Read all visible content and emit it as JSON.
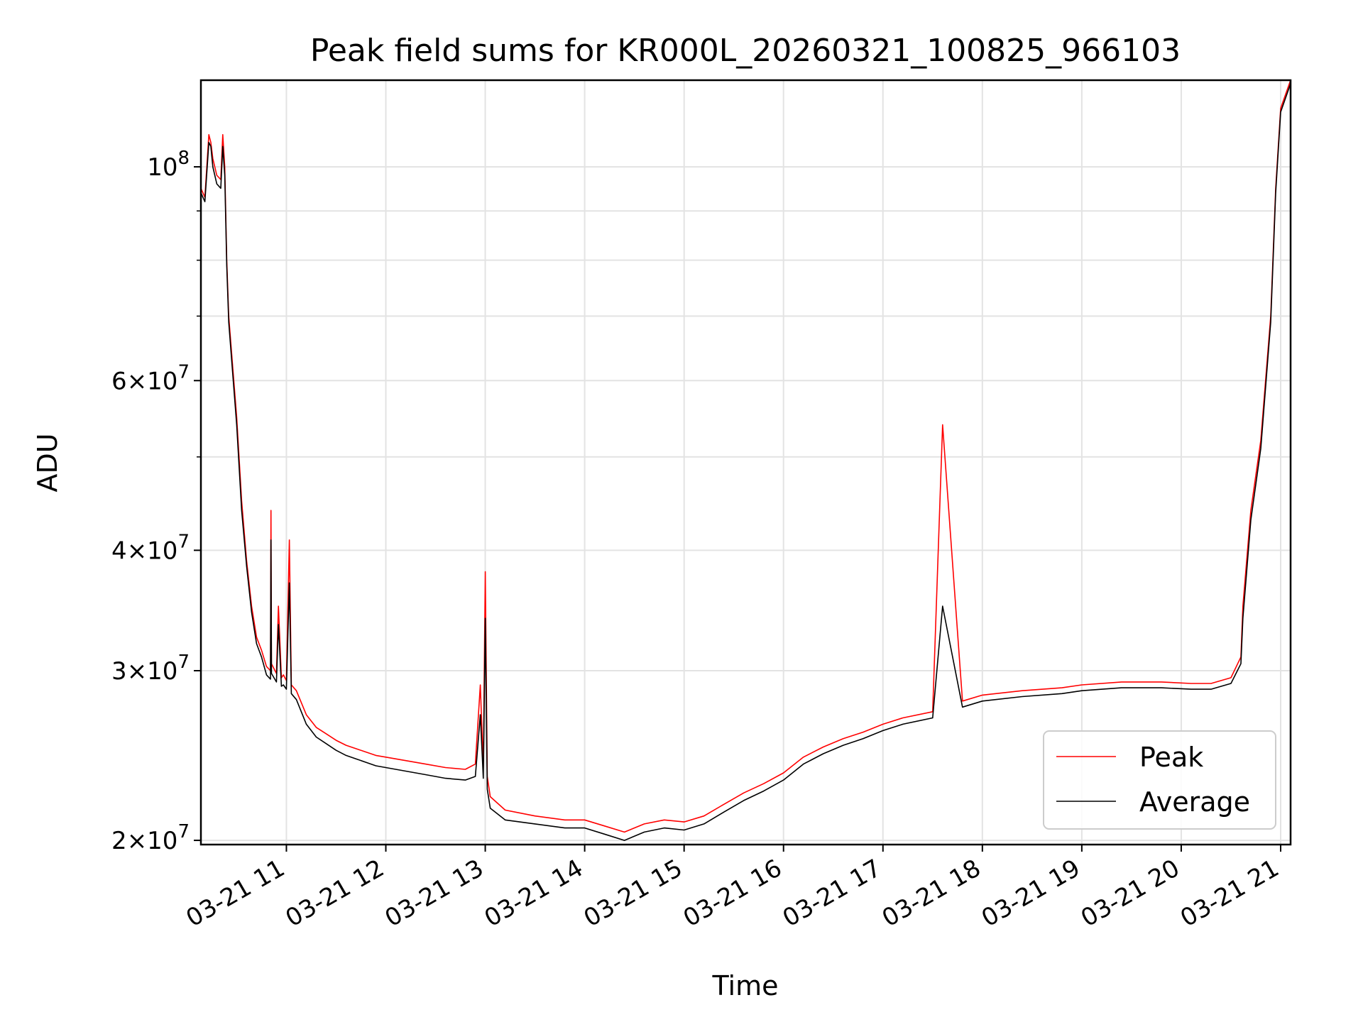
{
  "chart_data": {
    "type": "line",
    "title": "Peak field sums for KR000L_20260321_100825_966103",
    "xlabel": "Time",
    "ylabel": "ADU",
    "yscale": "log",
    "ylim": [
      19800000,
      123000000
    ],
    "xlim": [
      10.14,
      21.1
    ],
    "grid": true,
    "legend_position": "lower-right",
    "x_ticks": [
      {
        "value": 11,
        "label": "03-21 11"
      },
      {
        "value": 12,
        "label": "03-21 12"
      },
      {
        "value": 13,
        "label": "03-21 13"
      },
      {
        "value": 14,
        "label": "03-21 14"
      },
      {
        "value": 15,
        "label": "03-21 15"
      },
      {
        "value": 16,
        "label": "03-21 16"
      },
      {
        "value": 17,
        "label": "03-21 17"
      },
      {
        "value": 18,
        "label": "03-21 18"
      },
      {
        "value": 19,
        "label": "03-21 19"
      },
      {
        "value": 20,
        "label": "03-21 20"
      },
      {
        "value": 21,
        "label": "03-21 21"
      }
    ],
    "y_ticks": [
      {
        "value": 20000000,
        "mant": "2",
        "exp": "7"
      },
      {
        "value": 30000000,
        "mant": "3",
        "exp": "7"
      },
      {
        "value": 40000000,
        "mant": "4",
        "exp": "7"
      },
      {
        "value": 60000000,
        "mant": "6",
        "exp": "7"
      },
      {
        "value": 100000000,
        "mant": "",
        "exp": "8"
      }
    ],
    "y_minor_ticks": [
      50000000,
      70000000,
      80000000,
      90000000
    ],
    "series": [
      {
        "name": "Peak",
        "color": "#ff0000",
        "x": [
          10.14,
          10.18,
          10.22,
          10.24,
          10.26,
          10.3,
          10.34,
          10.36,
          10.38,
          10.4,
          10.42,
          10.46,
          10.5,
          10.55,
          10.6,
          10.65,
          10.7,
          10.75,
          10.8,
          10.84,
          10.845,
          10.85,
          10.9,
          10.92,
          10.95,
          10.97,
          11.0,
          11.03,
          11.05,
          11.1,
          11.2,
          11.3,
          11.4,
          11.5,
          11.6,
          11.7,
          11.8,
          11.9,
          12.0,
          12.2,
          12.4,
          12.6,
          12.8,
          12.9,
          12.95,
          12.98,
          13.0,
          13.02,
          13.05,
          13.2,
          13.5,
          13.8,
          14.0,
          14.2,
          14.4,
          14.6,
          14.8,
          15.0,
          15.2,
          15.4,
          15.6,
          15.8,
          16.0,
          16.2,
          16.4,
          16.6,
          16.8,
          17.0,
          17.2,
          17.5,
          17.6,
          17.8,
          18.0,
          18.4,
          18.8,
          19.0,
          19.4,
          19.8,
          20.1,
          20.3,
          20.5,
          20.6,
          20.62,
          20.7,
          20.8,
          20.9,
          20.95,
          21.0,
          21.1
        ],
        "values": [
          95000000,
          93000000,
          108000000,
          106000000,
          102000000,
          98000000,
          97000000,
          108000000,
          100000000,
          80000000,
          70000000,
          62000000,
          55000000,
          45000000,
          39000000,
          35000000,
          32500000,
          31500000,
          30300000,
          30000000,
          44000000,
          30500000,
          29800000,
          35000000,
          29500000,
          29700000,
          29300000,
          41000000,
          29000000,
          28600000,
          27000000,
          26200000,
          25800000,
          25400000,
          25100000,
          24900000,
          24700000,
          24500000,
          24400000,
          24200000,
          24000000,
          23800000,
          23700000,
          24000000,
          29000000,
          23800000,
          38000000,
          23300000,
          22200000,
          21500000,
          21200000,
          21000000,
          21000000,
          20700000,
          20400000,
          20800000,
          21000000,
          20900000,
          21200000,
          21800000,
          22400000,
          22900000,
          23500000,
          24400000,
          25000000,
          25500000,
          25900000,
          26400000,
          26800000,
          27200000,
          54000000,
          27900000,
          28300000,
          28600000,
          28800000,
          29000000,
          29200000,
          29200000,
          29100000,
          29100000,
          29500000,
          31000000,
          35000000,
          44000000,
          52000000,
          70000000,
          95000000,
          115000000,
          123000000
        ]
      },
      {
        "name": "Average",
        "color": "#000000",
        "x": [
          10.14,
          10.18,
          10.22,
          10.24,
          10.26,
          10.3,
          10.34,
          10.36,
          10.38,
          10.4,
          10.42,
          10.46,
          10.5,
          10.55,
          10.6,
          10.65,
          10.7,
          10.75,
          10.8,
          10.84,
          10.845,
          10.85,
          10.9,
          10.92,
          10.95,
          10.97,
          11.0,
          11.03,
          11.05,
          11.1,
          11.2,
          11.3,
          11.4,
          11.5,
          11.6,
          11.7,
          11.8,
          11.9,
          12.0,
          12.2,
          12.4,
          12.6,
          12.8,
          12.9,
          12.95,
          12.98,
          13.0,
          13.02,
          13.05,
          13.2,
          13.5,
          13.8,
          14.0,
          14.2,
          14.4,
          14.6,
          14.8,
          15.0,
          15.2,
          15.4,
          15.6,
          15.8,
          16.0,
          16.2,
          16.4,
          16.6,
          16.8,
          17.0,
          17.2,
          17.5,
          17.6,
          17.8,
          18.0,
          18.4,
          18.8,
          19.0,
          19.4,
          19.8,
          20.1,
          20.3,
          20.5,
          20.6,
          20.62,
          20.7,
          20.8,
          20.9,
          20.95,
          21.0,
          21.1
        ],
        "values": [
          94000000,
          92000000,
          106000000,
          105000000,
          100000000,
          96000000,
          95000000,
          105000000,
          98000000,
          79000000,
          69000000,
          61000000,
          54000000,
          44000000,
          38500000,
          34500000,
          32000000,
          31000000,
          29700000,
          29400000,
          41000000,
          29800000,
          29200000,
          33500000,
          28900000,
          29000000,
          28700000,
          37000000,
          28400000,
          28000000,
          26400000,
          25600000,
          25200000,
          24800000,
          24500000,
          24300000,
          24100000,
          23900000,
          23800000,
          23600000,
          23400000,
          23200000,
          23100000,
          23300000,
          27000000,
          23200000,
          34000000,
          22600000,
          21600000,
          21000000,
          20800000,
          20600000,
          20600000,
          20300000,
          20000000,
          20400000,
          20600000,
          20500000,
          20800000,
          21400000,
          22000000,
          22500000,
          23100000,
          24000000,
          24600000,
          25100000,
          25500000,
          26000000,
          26400000,
          26800000,
          35000000,
          27500000,
          27900000,
          28200000,
          28400000,
          28600000,
          28800000,
          28800000,
          28700000,
          28700000,
          29100000,
          30500000,
          34000000,
          43000000,
          51000000,
          69000000,
          94000000,
          114000000,
          122000000
        ]
      }
    ]
  }
}
